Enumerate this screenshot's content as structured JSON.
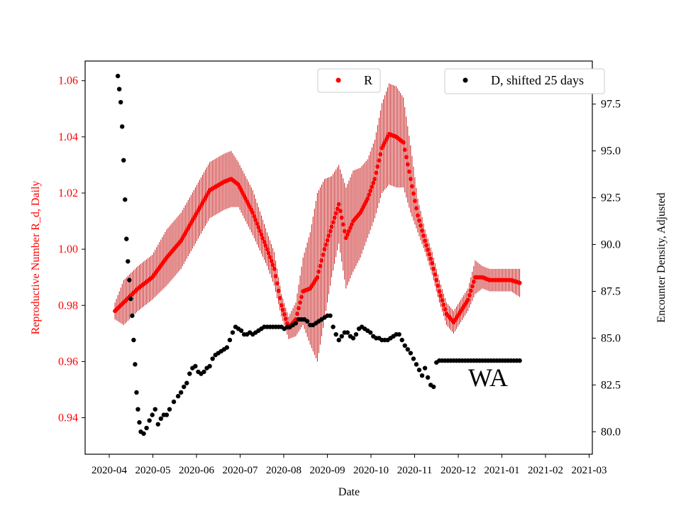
{
  "chart_data": {
    "type": "scatter",
    "xlabel": "Date",
    "ylabel_left": "Reproductive Number R_d, Daily",
    "ylabel_right": "Encounter Density, Adjusted",
    "ylim_left": [
      0.927,
      1.067
    ],
    "ylim_right": [
      78.8,
      99.8
    ],
    "x_ticks": [
      "2020-04",
      "2020-05",
      "2020-06",
      "2020-07",
      "2020-08",
      "2020-09",
      "2020-10",
      "2020-11",
      "2020-12",
      "2021-01",
      "2021-02",
      "2021-03"
    ],
    "yticks_left": [
      "0.94",
      "0.96",
      "0.98",
      "1.00",
      "1.02",
      "1.04",
      "1.06"
    ],
    "yticks_left_values": [
      0.94,
      0.96,
      0.98,
      1.0,
      1.02,
      1.04,
      1.06
    ],
    "yticks_right": [
      "80.0",
      "82.5",
      "85.0",
      "87.5",
      "90.0",
      "92.5",
      "95.0",
      "97.5"
    ],
    "yticks_right_values": [
      80.0,
      82.5,
      85.0,
      87.5,
      90.0,
      92.5,
      95.0,
      97.5
    ],
    "annotation": "WA",
    "colors": {
      "R": "#ff0000",
      "R_error": "#c00000",
      "D": "#000000",
      "left_axis": "#ff0000"
    },
    "series": [
      {
        "name": "R",
        "legend_label": "R",
        "axis": "left",
        "x_day": [
          4,
          10,
          20,
          30,
          40,
          50,
          60,
          70,
          80,
          85,
          90,
          100,
          110,
          115,
          120,
          125,
          130,
          135,
          140,
          145,
          150,
          155,
          160,
          165,
          170,
          175,
          180,
          185,
          190,
          195,
          200,
          205,
          210,
          215,
          220,
          225,
          230,
          235,
          240,
          245,
          250,
          255,
          260,
          265,
          270,
          273,
          280,
          286
        ],
        "y": [
          0.978,
          0.981,
          0.986,
          0.99,
          0.997,
          1.003,
          1.012,
          1.021,
          1.024,
          1.025,
          1.023,
          1.013,
          1.0,
          0.993,
          0.98,
          0.972,
          0.975,
          0.985,
          0.986,
          0.99,
          1.0,
          1.008,
          1.016,
          1.004,
          1.01,
          1.013,
          1.018,
          1.025,
          1.036,
          1.041,
          1.04,
          1.038,
          1.025,
          1.012,
          1.003,
          0.995,
          0.985,
          0.977,
          0.974,
          0.978,
          0.982,
          0.99,
          0.99,
          0.989,
          0.989,
          0.989,
          0.989,
          0.988
        ],
        "err": [
          0.003,
          0.008,
          0.008,
          0.008,
          0.01,
          0.01,
          0.01,
          0.01,
          0.01,
          0.01,
          0.008,
          0.008,
          0.006,
          0.006,
          0.004,
          0.004,
          0.006,
          0.012,
          0.02,
          0.03,
          0.025,
          0.018,
          0.014,
          0.018,
          0.018,
          0.016,
          0.014,
          0.014,
          0.016,
          0.018,
          0.018,
          0.016,
          0.012,
          0.006,
          0.004,
          0.004,
          0.004,
          0.004,
          0.004,
          0.004,
          0.004,
          0.006,
          0.004,
          0.004,
          0.004,
          0.004,
          0.004,
          0.005
        ]
      },
      {
        "name": "D",
        "legend_label": "D, shifted 25 days",
        "axis": "right",
        "x_day": [
          6,
          7,
          8,
          9,
          10,
          11,
          12,
          13,
          14,
          15,
          16,
          17,
          18,
          19,
          20,
          21,
          22,
          24,
          26,
          28,
          30,
          32,
          34,
          36,
          38,
          40,
          42,
          45,
          48,
          50,
          52,
          54,
          56,
          58,
          60,
          62,
          64,
          66,
          68,
          70,
          72,
          74,
          76,
          78,
          80,
          82,
          84,
          86,
          88,
          90,
          92,
          94,
          96,
          98,
          100,
          102,
          104,
          106,
          108,
          110,
          112,
          114,
          116,
          118,
          120,
          122,
          124,
          126,
          128,
          130,
          132,
          134,
          136,
          138,
          140,
          142,
          144,
          146,
          148,
          150,
          152,
          154,
          156,
          158,
          160,
          162,
          164,
          166,
          168,
          170,
          172,
          174,
          176,
          178,
          180,
          182,
          184,
          186,
          188,
          190,
          192,
          194,
          196,
          198,
          200,
          202,
          204,
          206,
          208,
          210,
          212,
          214,
          216,
          218,
          220,
          222,
          224,
          226,
          228,
          230,
          232,
          234,
          236,
          238,
          240,
          242,
          244,
          246,
          248,
          250,
          252,
          254,
          256,
          258,
          260,
          262,
          264,
          266,
          268,
          270,
          272,
          274,
          276,
          278,
          280,
          282,
          284,
          286
        ],
        "y": [
          99.0,
          98.3,
          97.6,
          96.3,
          94.5,
          92.4,
          90.3,
          89.1,
          88.1,
          87.1,
          86.2,
          84.9,
          83.6,
          82.1,
          81.2,
          80.5,
          80.0,
          79.9,
          80.2,
          80.6,
          80.9,
          81.2,
          80.4,
          80.7,
          80.9,
          80.9,
          81.2,
          81.6,
          81.9,
          82.1,
          82.4,
          82.6,
          83.1,
          83.4,
          83.5,
          83.2,
          83.1,
          83.2,
          83.4,
          83.5,
          83.9,
          84.1,
          84.2,
          84.3,
          84.4,
          84.5,
          84.9,
          85.3,
          85.6,
          85.5,
          85.4,
          85.2,
          85.2,
          85.3,
          85.2,
          85.3,
          85.4,
          85.5,
          85.6,
          85.6,
          85.6,
          85.6,
          85.6,
          85.6,
          85.6,
          85.5,
          85.6,
          85.6,
          85.7,
          85.8,
          86.0,
          86.0,
          86.0,
          85.9,
          85.7,
          85.7,
          85.8,
          85.9,
          86.0,
          86.1,
          86.2,
          86.2,
          85.6,
          85.2,
          84.9,
          85.1,
          85.3,
          85.3,
          85.1,
          85.0,
          85.2,
          85.5,
          85.6,
          85.5,
          85.4,
          85.3,
          85.1,
          85.0,
          85.0,
          84.9,
          84.9,
          84.9,
          85.0,
          85.1,
          85.2,
          85.2,
          84.9,
          84.6,
          84.4,
          84.2,
          83.9,
          83.6,
          83.3,
          83.0,
          83.4,
          82.9,
          82.5,
          82.4,
          83.7,
          83.8,
          83.8,
          83.8,
          83.8,
          83.8,
          83.8,
          83.8,
          83.8,
          83.8,
          83.8,
          83.8,
          83.8,
          83.8,
          83.8,
          83.8,
          83.8,
          83.8,
          83.8,
          83.8,
          83.8,
          83.8,
          83.8,
          83.8,
          83.8,
          83.8,
          83.8,
          83.8,
          83.8,
          83.8
        ]
      }
    ]
  }
}
